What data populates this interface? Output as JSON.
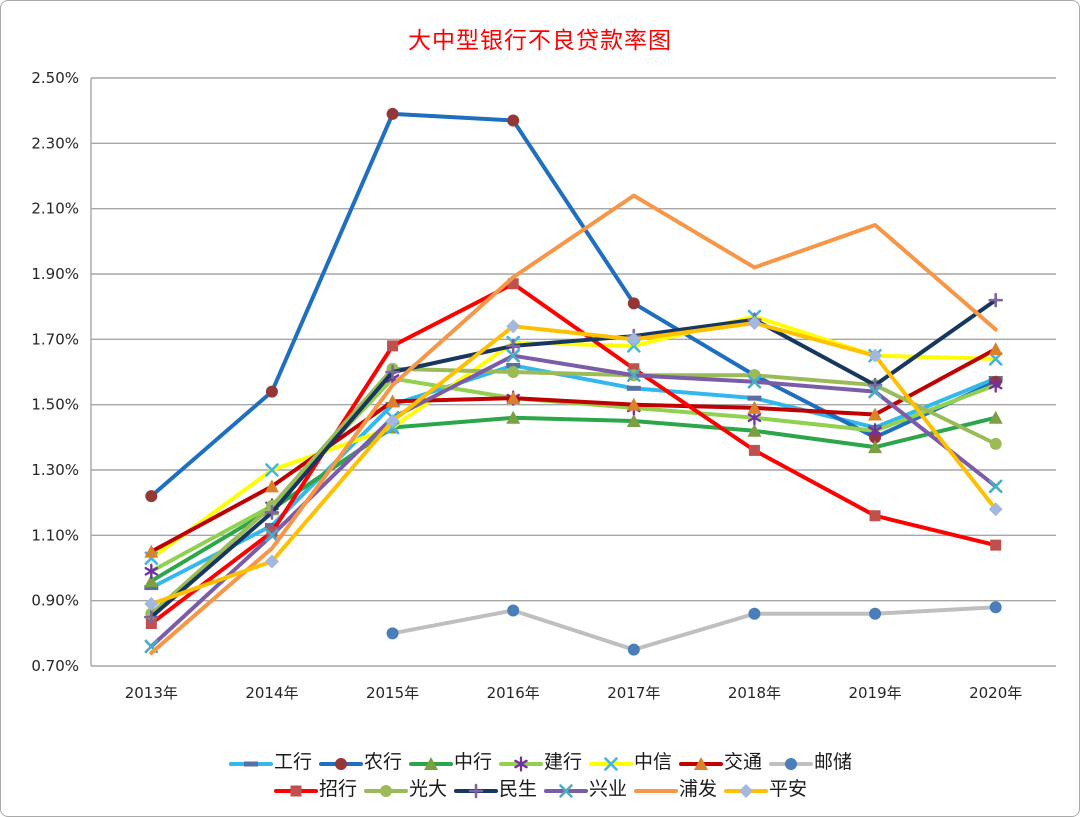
{
  "chart_data": {
    "type": "line",
    "title": "大中型银行不良贷款率图",
    "title_color": "#FF0000",
    "xlabel": "",
    "ylabel": "",
    "ylim": [
      0.7,
      2.5
    ],
    "grid": true,
    "legend_position": "bottom",
    "grid_color": "#A6A6A6",
    "axis_text_color": "#262626",
    "categories": [
      "2013年",
      "2014年",
      "2015年",
      "2016年",
      "2017年",
      "2018年",
      "2019年",
      "2020年"
    ],
    "y_ticks": [
      {
        "label": "0.70%",
        "value": 0.7
      },
      {
        "label": "0.90%",
        "value": 0.9
      },
      {
        "label": "1.10%",
        "value": 1.1
      },
      {
        "label": "1.30%",
        "value": 1.3
      },
      {
        "label": "1.50%",
        "value": 1.5
      },
      {
        "label": "1.70%",
        "value": 1.7
      },
      {
        "label": "1.90%",
        "value": 1.9
      },
      {
        "label": "2.10%",
        "value": 2.1
      },
      {
        "label": "2.30%",
        "value": 2.3
      },
      {
        "label": "2.50%",
        "value": 2.5
      }
    ],
    "series": [
      {
        "name": "工行",
        "line_color": "#33B8EE",
        "marker": "dash",
        "marker_color": "#5C6FA0",
        "values": [
          0.94,
          1.13,
          1.5,
          1.62,
          1.55,
          1.52,
          1.43,
          1.58
        ]
      },
      {
        "name": "农行",
        "line_color": "#1F6FC0",
        "marker": "circle",
        "marker_color": "#953735",
        "values": [
          1.22,
          1.54,
          2.39,
          2.37,
          1.81,
          1.59,
          1.4,
          1.57
        ]
      },
      {
        "name": "中行",
        "line_color": "#2CA64A",
        "marker": "triangle",
        "marker_color": "#7D9F44",
        "values": [
          0.96,
          1.18,
          1.43,
          1.46,
          1.45,
          1.42,
          1.37,
          1.46
        ]
      },
      {
        "name": "建行",
        "line_color": "#92D050",
        "marker": "asterisk",
        "marker_color": "#7030A0",
        "values": [
          0.99,
          1.19,
          1.58,
          1.52,
          1.49,
          1.46,
          1.42,
          1.56
        ]
      },
      {
        "name": "中信",
        "line_color": "#FFFF00",
        "marker": "x",
        "marker_color": "#45B5E0",
        "values": [
          1.03,
          1.3,
          1.43,
          1.69,
          1.68,
          1.77,
          1.65,
          1.64
        ]
      },
      {
        "name": "交通",
        "line_color": "#C00000",
        "marker": "triangle",
        "marker_color": "#D9822B",
        "values": [
          1.05,
          1.25,
          1.51,
          1.52,
          1.5,
          1.49,
          1.47,
          1.67
        ]
      },
      {
        "name": "邮储",
        "line_color": "#BFBFBF",
        "marker": "circle",
        "marker_color": "#4A7EBB",
        "values": [
          null,
          null,
          0.8,
          0.87,
          0.75,
          0.86,
          0.86,
          0.88
        ]
      },
      {
        "name": "招行",
        "line_color": "#FF0000",
        "marker": "square",
        "marker_color": "#C0504D",
        "values": [
          0.83,
          1.11,
          1.68,
          1.87,
          1.61,
          1.36,
          1.16,
          1.07
        ]
      },
      {
        "name": "光大",
        "line_color": "#9BBB59",
        "marker": "circle",
        "marker_color": "#9BBB59",
        "values": [
          0.86,
          1.19,
          1.61,
          1.6,
          1.59,
          1.59,
          1.56,
          1.38
        ]
      },
      {
        "name": "民生",
        "line_color": "#17375E",
        "marker": "plus",
        "marker_color": "#8064A2",
        "values": [
          0.85,
          1.17,
          1.6,
          1.68,
          1.71,
          1.76,
          1.56,
          1.82
        ]
      },
      {
        "name": "兴业",
        "line_color": "#7A5CA8",
        "marker": "x",
        "marker_color": "#4BACC6",
        "values": [
          0.76,
          1.1,
          1.46,
          1.65,
          1.59,
          1.57,
          1.54,
          1.25
        ]
      },
      {
        "name": "浦发",
        "line_color": "#F79646",
        "marker": "none",
        "marker_color": "#F79646",
        "values": [
          0.74,
          1.06,
          1.56,
          1.89,
          2.14,
          1.92,
          2.05,
          1.73
        ]
      },
      {
        "name": "平安",
        "line_color": "#FFC000",
        "marker": "diamond",
        "marker_color": "#A3B8DC",
        "values": [
          0.89,
          1.02,
          1.45,
          1.74,
          1.7,
          1.75,
          1.65,
          1.18
        ]
      }
    ]
  }
}
